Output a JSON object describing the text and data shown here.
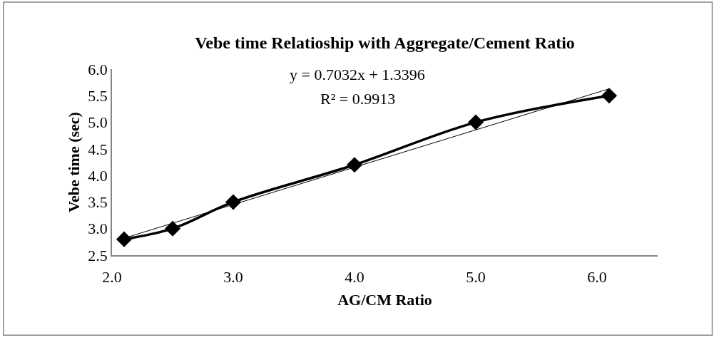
{
  "chart_data": {
    "type": "line",
    "title": "Vebe time Relatioship with Aggregate/Cement Ratio",
    "xlabel": "AG/CM Ratio",
    "ylabel": "Vebe time (sec)",
    "x": [
      2.1,
      2.5,
      3.0,
      4.0,
      5.0,
      6.1
    ],
    "series": [
      {
        "color": "#000000",
        "values": [
          2.8,
          3.0,
          3.5,
          4.2,
          5.0,
          5.5
        ],
        "marker": "diamond"
      },
      {
        "type": "line",
        "color": "#000000",
        "x": [
          2.1,
          6.1
        ],
        "values": [
          2.82,
          5.63
        ],
        "marker": "none"
      }
    ],
    "xlim": [
      2.0,
      6.5
    ],
    "xticks": [
      {
        "value": 2,
        "label": "2.0"
      },
      {
        "value": 3,
        "label": "3.0"
      },
      {
        "value": 4,
        "label": "4.0"
      },
      {
        "value": 5,
        "label": "5.0"
      },
      {
        "value": 6,
        "label": "6.0"
      }
    ],
    "ylim": [
      2.5,
      6.0
    ],
    "yticks": [
      {
        "value": 2.5,
        "label": "2.5"
      },
      {
        "value": 3,
        "label": "3.0"
      },
      {
        "value": 3.5,
        "label": "3.5"
      },
      {
        "value": 4,
        "label": "4.0"
      },
      {
        "value": 4.5,
        "label": "4.5"
      },
      {
        "value": 5,
        "label": "5.0"
      },
      {
        "value": 5.5,
        "label": "5.5"
      },
      {
        "value": 6,
        "label": "6.0"
      }
    ],
    "annotations": [
      "y = 0.7032x + 1.3396",
      "R² = 0.9913"
    ]
  }
}
